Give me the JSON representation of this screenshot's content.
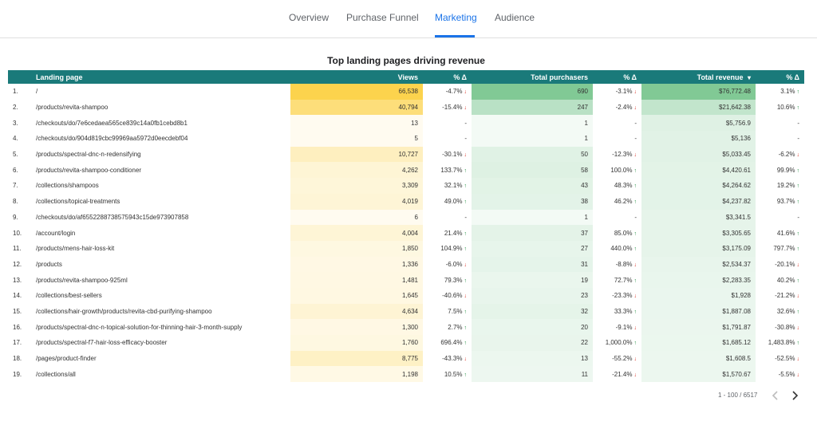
{
  "tabs": [
    {
      "label": "Overview",
      "active": false
    },
    {
      "label": "Purchase Funnel",
      "active": false
    },
    {
      "label": "Marketing",
      "active": true
    },
    {
      "label": "Audience",
      "active": false
    }
  ],
  "table_title": "Top landing pages driving revenue",
  "columns": {
    "landing_page": "Landing page",
    "views": "Views",
    "views_delta": "% Δ",
    "purchasers": "Total purchasers",
    "purchasers_delta": "% Δ",
    "revenue": "Total revenue",
    "revenue_sort_icon": "▾",
    "revenue_delta": "% Δ"
  },
  "colors": {
    "header_bg": "#1a7a7a",
    "views_heat": "#fcd34d",
    "purchasers_heat": "#81c995",
    "revenue_heat": "#81c995",
    "delta_up": "#1e8e3e",
    "delta_down": "#d93025",
    "active_tab": "#1a73e8"
  },
  "rows": [
    {
      "idx": "1.",
      "page": "/",
      "views": "66,538",
      "views_num": 66538,
      "vd": "-4.7%",
      "vdir": "down",
      "purch": "690",
      "purch_num": 690,
      "pd": "-3.1%",
      "pdir": "down",
      "rev": "$76,772.48",
      "rev_num": 76772.48,
      "rd": "3.1%",
      "rdir": "up"
    },
    {
      "idx": "2.",
      "page": "/products/revita-shampoo",
      "views": "40,794",
      "views_num": 40794,
      "vd": "-15.4%",
      "vdir": "down",
      "purch": "247",
      "purch_num": 247,
      "pd": "-2.4%",
      "pdir": "down",
      "rev": "$21,642.38",
      "rev_num": 21642.38,
      "rd": "10.6%",
      "rdir": "up"
    },
    {
      "idx": "3.",
      "page": "/checkouts/do/7e6cedaea565ce839c14a0fb1cebd8b1",
      "views": "13",
      "views_num": 13,
      "vd": "-",
      "vdir": "none",
      "purch": "1",
      "purch_num": 1,
      "pd": "-",
      "pdir": "none",
      "rev": "$5,756.9",
      "rev_num": 5756.9,
      "rd": "-",
      "rdir": "none"
    },
    {
      "idx": "4.",
      "page": "/checkouts/do/904d819cbc99969aa5972d0eecdebf04",
      "views": "5",
      "views_num": 5,
      "vd": "-",
      "vdir": "none",
      "purch": "1",
      "purch_num": 1,
      "pd": "-",
      "pdir": "none",
      "rev": "$5,136",
      "rev_num": 5136,
      "rd": "-",
      "rdir": "none"
    },
    {
      "idx": "5.",
      "page": "/products/spectral-dnc-n-redensifying",
      "views": "10,727",
      "views_num": 10727,
      "vd": "-30.1%",
      "vdir": "down",
      "purch": "50",
      "purch_num": 50,
      "pd": "-12.3%",
      "pdir": "down",
      "rev": "$5,033.45",
      "rev_num": 5033.45,
      "rd": "-6.2%",
      "rdir": "down"
    },
    {
      "idx": "6.",
      "page": "/products/revita-shampoo-conditioner",
      "views": "4,262",
      "views_num": 4262,
      "vd": "133.7%",
      "vdir": "up",
      "purch": "58",
      "purch_num": 58,
      "pd": "100.0%",
      "pdir": "up",
      "rev": "$4,420.61",
      "rev_num": 4420.61,
      "rd": "99.9%",
      "rdir": "up"
    },
    {
      "idx": "7.",
      "page": "/collections/shampoos",
      "views": "3,309",
      "views_num": 3309,
      "vd": "32.1%",
      "vdir": "up",
      "purch": "43",
      "purch_num": 43,
      "pd": "48.3%",
      "pdir": "up",
      "rev": "$4,264.62",
      "rev_num": 4264.62,
      "rd": "19.2%",
      "rdir": "up"
    },
    {
      "idx": "8.",
      "page": "/collections/topical-treatments",
      "views": "4,019",
      "views_num": 4019,
      "vd": "49.0%",
      "vdir": "up",
      "purch": "38",
      "purch_num": 38,
      "pd": "46.2%",
      "pdir": "up",
      "rev": "$4,237.82",
      "rev_num": 4237.82,
      "rd": "93.7%",
      "rdir": "up"
    },
    {
      "idx": "9.",
      "page": "/checkouts/do/af6552288738575943c15de973907858",
      "views": "6",
      "views_num": 6,
      "vd": "-",
      "vdir": "none",
      "purch": "1",
      "purch_num": 1,
      "pd": "-",
      "pdir": "none",
      "rev": "$3,341.5",
      "rev_num": 3341.5,
      "rd": "-",
      "rdir": "none"
    },
    {
      "idx": "10.",
      "page": "/account/login",
      "views": "4,004",
      "views_num": 4004,
      "vd": "21.4%",
      "vdir": "up",
      "purch": "37",
      "purch_num": 37,
      "pd": "85.0%",
      "pdir": "up",
      "rev": "$3,305.65",
      "rev_num": 3305.65,
      "rd": "41.6%",
      "rdir": "up"
    },
    {
      "idx": "11.",
      "page": "/products/mens-hair-loss-kit",
      "views": "1,850",
      "views_num": 1850,
      "vd": "104.9%",
      "vdir": "up",
      "purch": "27",
      "purch_num": 27,
      "pd": "440.0%",
      "pdir": "up",
      "rev": "$3,175.09",
      "rev_num": 3175.09,
      "rd": "797.7%",
      "rdir": "up"
    },
    {
      "idx": "12.",
      "page": "/products",
      "views": "1,336",
      "views_num": 1336,
      "vd": "-6.0%",
      "vdir": "down",
      "purch": "31",
      "purch_num": 31,
      "pd": "-8.8%",
      "pdir": "down",
      "rev": "$2,534.37",
      "rev_num": 2534.37,
      "rd": "-20.1%",
      "rdir": "down"
    },
    {
      "idx": "13.",
      "page": "/products/revita-shampoo-925ml",
      "views": "1,481",
      "views_num": 1481,
      "vd": "79.3%",
      "vdir": "up",
      "purch": "19",
      "purch_num": 19,
      "pd": "72.7%",
      "pdir": "up",
      "rev": "$2,283.35",
      "rev_num": 2283.35,
      "rd": "40.2%",
      "rdir": "up"
    },
    {
      "idx": "14.",
      "page": "/collections/best-sellers",
      "views": "1,645",
      "views_num": 1645,
      "vd": "-40.6%",
      "vdir": "down",
      "purch": "23",
      "purch_num": 23,
      "pd": "-23.3%",
      "pdir": "down",
      "rev": "$1,928",
      "rev_num": 1928,
      "rd": "-21.2%",
      "rdir": "down"
    },
    {
      "idx": "15.",
      "page": "/collections/hair-growth/products/revita-cbd-purifying-shampoo",
      "views": "4,634",
      "views_num": 4634,
      "vd": "7.5%",
      "vdir": "up",
      "purch": "32",
      "purch_num": 32,
      "pd": "33.3%",
      "pdir": "up",
      "rev": "$1,887.08",
      "rev_num": 1887.08,
      "rd": "32.6%",
      "rdir": "up"
    },
    {
      "idx": "16.",
      "page": "/products/spectral-dnc-n-topical-solution-for-thinning-hair-3-month-supply",
      "views": "1,300",
      "views_num": 1300,
      "vd": "2.7%",
      "vdir": "up",
      "purch": "20",
      "purch_num": 20,
      "pd": "-9.1%",
      "pdir": "down",
      "rev": "$1,791.87",
      "rev_num": 1791.87,
      "rd": "-30.8%",
      "rdir": "down"
    },
    {
      "idx": "17.",
      "page": "/products/spectral-f7-hair-loss-efficacy-booster",
      "views": "1,760",
      "views_num": 1760,
      "vd": "696.4%",
      "vdir": "up",
      "purch": "22",
      "purch_num": 22,
      "pd": "1,000.0%",
      "pdir": "up",
      "rev": "$1,685.12",
      "rev_num": 1685.12,
      "rd": "1,483.8%",
      "rdir": "up"
    },
    {
      "idx": "18.",
      "page": "/pages/product-finder",
      "views": "8,775",
      "views_num": 8775,
      "vd": "-43.3%",
      "vdir": "down",
      "purch": "13",
      "purch_num": 13,
      "pd": "-55.2%",
      "pdir": "down",
      "rev": "$1,608.5",
      "rev_num": 1608.5,
      "rd": "-52.5%",
      "rdir": "down"
    },
    {
      "idx": "19.",
      "page": "/collections/all",
      "views": "1,198",
      "views_num": 1198,
      "vd": "10.5%",
      "vdir": "up",
      "purch": "11",
      "purch_num": 11,
      "pd": "-21.4%",
      "pdir": "down",
      "rev": "$1,570.67",
      "rev_num": 1570.67,
      "rd": "-5.5%",
      "rdir": "down"
    }
  ],
  "pagination": {
    "label": "1 - 100 / 6517",
    "prev_icon": "chevron-left-icon",
    "next_icon": "chevron-right-icon"
  }
}
